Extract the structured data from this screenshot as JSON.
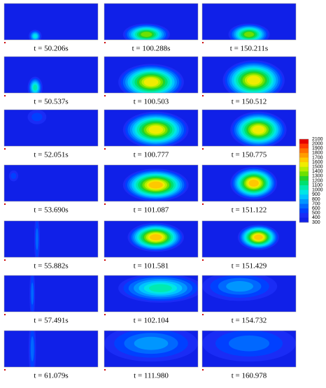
{
  "panels": [
    {
      "caption": "t = 50.206s"
    },
    {
      "caption": "t = 100.288s"
    },
    {
      "caption": "t = 150.211s"
    },
    {
      "caption": "t = 50.537s"
    },
    {
      "caption": "t = 100.503"
    },
    {
      "caption": "t = 150.512"
    },
    {
      "caption": "t = 52.051s"
    },
    {
      "caption": "t = 100.777"
    },
    {
      "caption": "t = 150.775"
    },
    {
      "caption": "t = 53.690s"
    },
    {
      "caption": "t = 101.087"
    },
    {
      "caption": "t = 151.122"
    },
    {
      "caption": "t = 55.882s"
    },
    {
      "caption": "t = 101.581"
    },
    {
      "caption": "t = 151.429"
    },
    {
      "caption": "t = 57.491s"
    },
    {
      "caption": "t = 102.104"
    },
    {
      "caption": "t = 154.732"
    },
    {
      "caption": "t = 61.079s"
    },
    {
      "caption": "t = 111.980"
    },
    {
      "caption": "t = 160.978"
    }
  ],
  "colorbar": {
    "labels": [
      2100,
      2000,
      1900,
      1800,
      1700,
      1600,
      1500,
      1400,
      1300,
      1200,
      1100,
      1000,
      900,
      800,
      700,
      600,
      500,
      400,
      300
    ],
    "colors": [
      "#e60000",
      "#ff3a00",
      "#ff6e00",
      "#ff9c00",
      "#ffc800",
      "#f0ec00",
      "#b8ee00",
      "#6ee000",
      "#22d22a",
      "#00e070",
      "#00eab0",
      "#00e6e6",
      "#00c4ff",
      "#0096ff",
      "#0068ff",
      "#0040ff",
      "#1a2cf5",
      "#1020e8"
    ]
  }
}
